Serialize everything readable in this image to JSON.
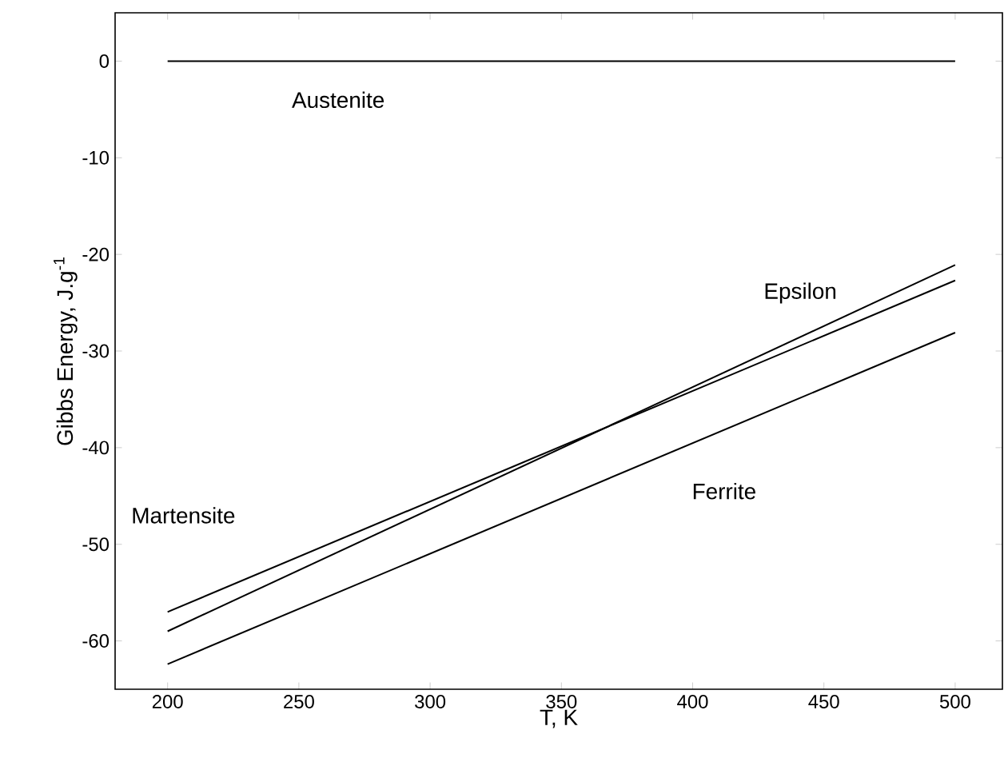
{
  "chart_data": {
    "type": "line",
    "xlabel": "T, K",
    "ylabel": "Gibbs Energy, J.g$^{-1}$",
    "x": [
      200,
      500
    ],
    "series": [
      {
        "name": "Austenite",
        "color": "#000000",
        "values": [
          0,
          0
        ]
      },
      {
        "name": "Epsilon",
        "color": "#000000",
        "values": [
          -59,
          -21.1
        ]
      },
      {
        "name": "Martensite",
        "color": "#000000",
        "values": [
          -57,
          -22.7
        ]
      },
      {
        "name": "Ferrite",
        "color": "#000000",
        "values": [
          -62.4,
          -28.1
        ]
      }
    ],
    "xlim": [
      180,
      518
    ],
    "ylim": [
      -65,
      5
    ],
    "xticks": [
      200,
      250,
      300,
      350,
      400,
      450,
      500
    ],
    "yticks": [
      -60,
      -50,
      -40,
      -30,
      -20,
      -10,
      0
    ],
    "grid": false,
    "legend": false,
    "marker": "none",
    "line_style": "solid"
  }
}
